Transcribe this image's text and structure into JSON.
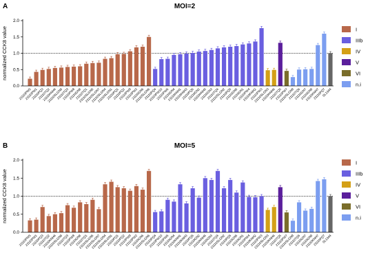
{
  "chart_data": [
    {
      "type": "bar",
      "panel_label": "A",
      "title": "MOI=2",
      "ylabel": "normalized CCK8 value",
      "ylim": [
        0,
        2.0
      ],
      "yticks": [
        "0.0",
        "0.5",
        "1.0",
        "1.5",
        "2.0"
      ],
      "reference_line": 1.0,
      "groups": [
        {
          "name": "I",
          "color": "#b8684a",
          "categories": [
            "21110PW5",
            "21110PW1",
            "21110PQ3",
            "21110TQ2",
            "21110KNH4",
            "21110SLGN8",
            "21110TQ3",
            "21110PW8",
            "21110GN8",
            "21110TQ1",
            "21110SLGN5",
            "21110SLGN7",
            "21110SLGN4",
            "21110SLGN1",
            "21110PQ1",
            "21110PQ2",
            "21110PW9",
            "21110PW2",
            "21110GN6",
            "21110SLGN6"
          ],
          "values": [
            0.22,
            0.43,
            0.49,
            0.52,
            0.55,
            0.56,
            0.58,
            0.59,
            0.6,
            0.68,
            0.7,
            0.71,
            0.83,
            0.85,
            0.97,
            0.98,
            1.06,
            1.18,
            1.2,
            1.5
          ]
        },
        {
          "name": "IIIb",
          "color": "#6a5fe0",
          "categories": [
            "21110PQ4",
            "21110PW10",
            "21110PW6",
            "21110GN4",
            "21110KNH1",
            "21110KNH3",
            "21110PQ6",
            "21110GN2",
            "21110KNH5",
            "21110GN3",
            "21110TQ4",
            "21110SLGN2",
            "21110PQ5",
            "21110GN5",
            "21110GN1",
            "21110PW4",
            "21110KNH2",
            "21110PW3"
          ],
          "values": [
            0.52,
            0.82,
            0.83,
            0.95,
            0.97,
            0.99,
            1.01,
            1.05,
            1.07,
            1.1,
            1.15,
            1.18,
            1.2,
            1.22,
            1.27,
            1.3,
            1.36,
            1.77
          ]
        },
        {
          "name": "IV",
          "color": "#d4a017",
          "categories": [
            "21110SLGN3",
            "21110KNH6"
          ],
          "values": [
            0.48,
            0.49
          ]
        },
        {
          "name": "V",
          "color": "#5b1f9c",
          "categories": [
            "21110TQ5"
          ],
          "values": [
            1.32
          ]
        },
        {
          "name": "VI",
          "color": "#7a6d2a",
          "categories": [
            "21110PW7"
          ],
          "values": [
            0.46
          ]
        },
        {
          "name": "n.i",
          "color": "#7c9ef0",
          "categories": [
            "21110SLGN9",
            "21110TQ6",
            "21110GN7",
            "21110GN9",
            "21110KNH7",
            "21110PQ7"
          ],
          "values": [
            0.27,
            0.5,
            0.51,
            0.52,
            1.25,
            1.6
          ]
        },
        {
          "name": "SL1344",
          "color": "#666666",
          "categories": [
            "SL1344"
          ],
          "values": [
            1.0
          ]
        }
      ]
    },
    {
      "type": "bar",
      "panel_label": "B",
      "title": "MOI=5",
      "ylabel": "normalized CCK8 value",
      "ylim": [
        0,
        2.0
      ],
      "yticks": [
        "0.0",
        "0.5",
        "1.0",
        "1.5",
        "2.0"
      ],
      "reference_line": 1.0,
      "groups": [
        {
          "name": "I",
          "color": "#b8684a",
          "categories": [
            "21110PW5",
            "21110PW1",
            "21110PQ3",
            "21110TQ2",
            "21110KNH4",
            "21110SLGN8",
            "21110TQ3",
            "21110PW8",
            "21110GN8",
            "21110TQ1",
            "21110SLGN5",
            "21110SLGN7",
            "21110SLGN4",
            "21110SLGN1",
            "21110PQ1",
            "21110PQ2",
            "21110PW9",
            "21110PW2",
            "21110GN6",
            "21110SLGN6"
          ],
          "values": [
            0.33,
            0.35,
            0.7,
            0.45,
            0.5,
            0.53,
            0.75,
            0.68,
            0.83,
            0.78,
            0.9,
            0.64,
            1.33,
            1.4,
            1.25,
            1.22,
            1.15,
            1.28,
            1.18,
            1.7
          ]
        },
        {
          "name": "IIIb",
          "color": "#6a5fe0",
          "categories": [
            "21110PQ4",
            "21110PW10",
            "21110PW6",
            "21110GN4",
            "21110KNH1",
            "21110KNH3",
            "21110PQ6",
            "21110GN2",
            "21110KNH5",
            "21110GN3",
            "21110TQ4",
            "21110SLGN2",
            "21110PQ5",
            "21110GN5",
            "21110GN1",
            "21110PW4",
            "21110KNH2",
            "21110PW3"
          ],
          "values": [
            0.56,
            0.58,
            0.9,
            0.85,
            1.33,
            0.8,
            1.22,
            0.96,
            1.5,
            1.45,
            1.7,
            1.22,
            1.45,
            1.1,
            1.38,
            0.98,
            0.97,
            1.0
          ]
        },
        {
          "name": "IV",
          "color": "#d4a017",
          "categories": [
            "21110SLGN3",
            "21110KNH6"
          ],
          "values": [
            0.62,
            0.7
          ]
        },
        {
          "name": "V",
          "color": "#5b1f9c",
          "categories": [
            "21110TQ5"
          ],
          "values": [
            1.25
          ]
        },
        {
          "name": "VI",
          "color": "#7a6d2a",
          "categories": [
            "21110PW7"
          ],
          "values": [
            0.55
          ]
        },
        {
          "name": "n.i",
          "color": "#7c9ef0",
          "categories": [
            "21110SLGN9",
            "21110TQ6",
            "21110GN7",
            "21110GN9",
            "21110KNH7",
            "21110PQ7"
          ],
          "values": [
            0.32,
            0.83,
            0.6,
            0.65,
            1.42,
            1.47
          ]
        },
        {
          "name": "SL1344",
          "color": "#666666",
          "categories": [
            "SL1344"
          ],
          "values": [
            1.0
          ]
        }
      ]
    }
  ],
  "legend": [
    {
      "name": "I",
      "color": "#b8684a"
    },
    {
      "name": "IIIb",
      "color": "#6a5fe0"
    },
    {
      "name": "IV",
      "color": "#d4a017"
    },
    {
      "name": "V",
      "color": "#5b1f9c"
    },
    {
      "name": "VI",
      "color": "#7a6d2a"
    },
    {
      "name": "n.i",
      "color": "#7c9ef0"
    }
  ]
}
